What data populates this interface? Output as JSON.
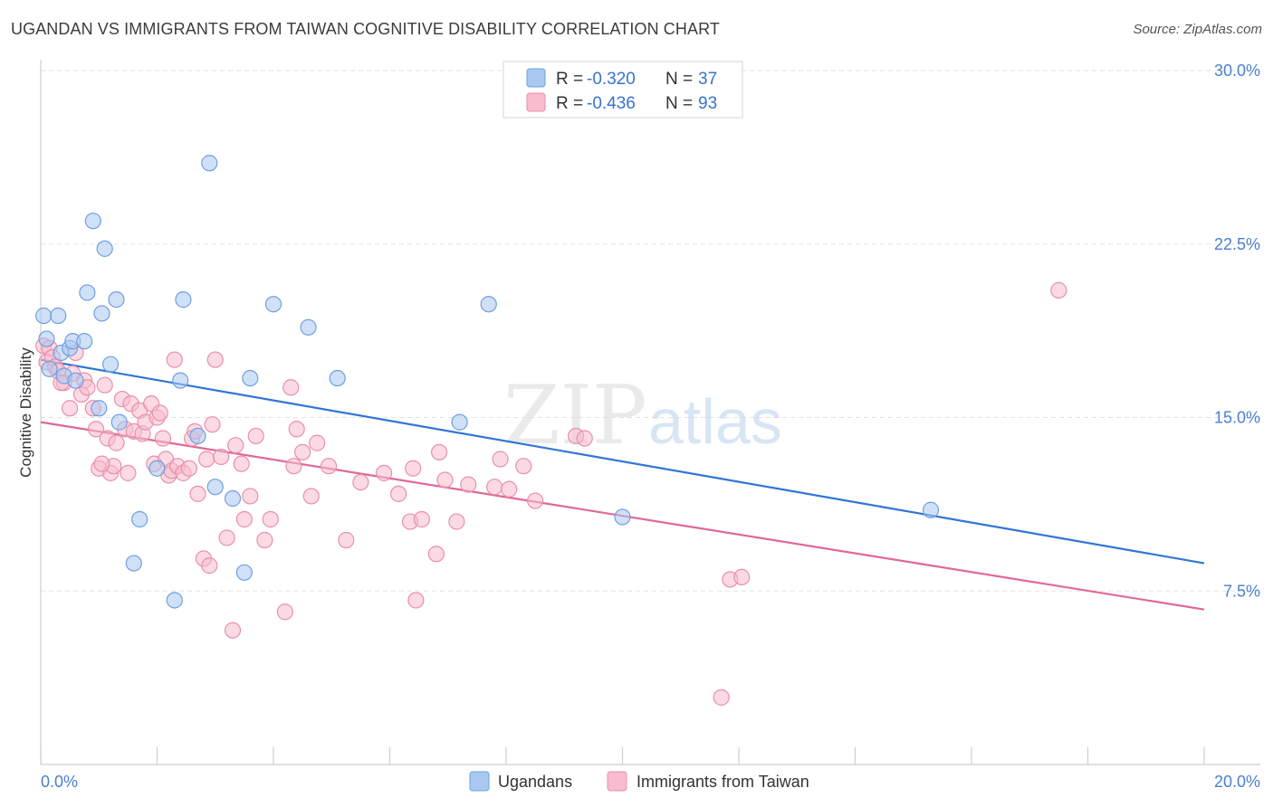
{
  "title": "UGANDAN VS IMMIGRANTS FROM TAIWAN COGNITIVE DISABILITY CORRELATION CHART",
  "source": "Source: ZipAtlas.com",
  "watermark": {
    "zip": "ZIP",
    "atlas": "atlas"
  },
  "colors": {
    "blue_fill": "#a9c8f0",
    "blue_stroke": "#6f9fe0",
    "blue_line": "#2f76d6",
    "pink_fill": "#f7bccd",
    "pink_stroke": "#e98fab",
    "pink_line": "#e0679a",
    "grid": "#e2e2e2",
    "axis_text": "#4a7fd0"
  },
  "legend": {
    "rows": [
      {
        "r_label": "R =",
        "r_value": "-0.320",
        "n_label": "N =",
        "n_value": "37"
      },
      {
        "r_label": "R =",
        "r_value": "-0.436",
        "n_label": "N =",
        "n_value": "93"
      }
    ]
  },
  "chart_data": {
    "type": "scatter",
    "title": "UGANDAN VS IMMIGRANTS FROM TAIWAN COGNITIVE DISABILITY CORRELATION CHART",
    "xlabel": "",
    "ylabel": "Cognitive Disability",
    "xlim": [
      0,
      20
    ],
    "ylim": [
      0,
      30
    ],
    "x_tick_labels": [
      "0.0%",
      "20.0%"
    ],
    "y_ticks": [
      7.5,
      15.0,
      22.5,
      30.0
    ],
    "y_tick_labels": [
      "7.5%",
      "15.0%",
      "22.5%",
      "30.0%"
    ],
    "grid": true,
    "legend_position": "top-center",
    "series": [
      {
        "name": "Ugandans",
        "r": -0.32,
        "n": 37,
        "trend": {
          "x0": 0,
          "y0": 17.5,
          "x1": 20,
          "y1": 8.7
        },
        "points": [
          [
            0.05,
            19.4
          ],
          [
            0.1,
            18.4
          ],
          [
            0.15,
            17.1
          ],
          [
            0.3,
            19.4
          ],
          [
            0.35,
            17.8
          ],
          [
            0.4,
            16.8
          ],
          [
            0.5,
            18.0
          ],
          [
            0.55,
            18.3
          ],
          [
            0.6,
            16.6
          ],
          [
            0.75,
            18.3
          ],
          [
            0.8,
            20.4
          ],
          [
            0.9,
            23.5
          ],
          [
            1.0,
            15.4
          ],
          [
            1.05,
            19.5
          ],
          [
            1.1,
            22.3
          ],
          [
            1.2,
            17.3
          ],
          [
            1.3,
            20.1
          ],
          [
            1.35,
            14.8
          ],
          [
            1.6,
            8.7
          ],
          [
            1.7,
            10.6
          ],
          [
            2.0,
            12.8
          ],
          [
            2.3,
            7.1
          ],
          [
            2.4,
            16.6
          ],
          [
            2.45,
            20.1
          ],
          [
            2.7,
            14.2
          ],
          [
            2.9,
            26.0
          ],
          [
            3.0,
            12.0
          ],
          [
            3.3,
            11.5
          ],
          [
            3.5,
            8.3
          ],
          [
            3.6,
            16.7
          ],
          [
            4.0,
            19.9
          ],
          [
            4.6,
            18.9
          ],
          [
            5.1,
            16.7
          ],
          [
            7.2,
            14.8
          ],
          [
            7.7,
            19.9
          ],
          [
            10.0,
            10.7
          ],
          [
            15.3,
            11.0
          ]
        ]
      },
      {
        "name": "Immigrants from Taiwan",
        "r": -0.436,
        "n": 93,
        "trend": {
          "x0": 0,
          "y0": 14.8,
          "x1": 20,
          "y1": 6.7
        },
        "points": [
          [
            0.05,
            18.1
          ],
          [
            0.1,
            17.4
          ],
          [
            0.15,
            18.0
          ],
          [
            0.2,
            17.6
          ],
          [
            0.25,
            17.2
          ],
          [
            0.3,
            17.0
          ],
          [
            0.4,
            16.5
          ],
          [
            0.5,
            15.4
          ],
          [
            0.55,
            16.9
          ],
          [
            0.6,
            17.8
          ],
          [
            0.7,
            16.0
          ],
          [
            0.75,
            16.6
          ],
          [
            0.8,
            16.3
          ],
          [
            0.9,
            15.4
          ],
          [
            0.95,
            14.5
          ],
          [
            1.0,
            12.8
          ],
          [
            1.1,
            16.4
          ],
          [
            1.15,
            14.1
          ],
          [
            1.2,
            12.6
          ],
          [
            1.25,
            12.9
          ],
          [
            1.3,
            13.9
          ],
          [
            1.4,
            15.8
          ],
          [
            1.45,
            14.5
          ],
          [
            1.5,
            12.6
          ],
          [
            1.55,
            15.6
          ],
          [
            1.6,
            14.4
          ],
          [
            1.7,
            15.3
          ],
          [
            1.75,
            14.3
          ],
          [
            1.8,
            14.8
          ],
          [
            1.9,
            15.6
          ],
          [
            1.95,
            13.0
          ],
          [
            2.0,
            15.0
          ],
          [
            2.05,
            15.2
          ],
          [
            2.1,
            14.1
          ],
          [
            2.15,
            13.2
          ],
          [
            2.2,
            12.5
          ],
          [
            2.25,
            12.7
          ],
          [
            2.3,
            17.5
          ],
          [
            2.35,
            12.9
          ],
          [
            2.45,
            12.6
          ],
          [
            2.55,
            12.8
          ],
          [
            2.6,
            14.1
          ],
          [
            2.65,
            14.4
          ],
          [
            2.7,
            11.7
          ],
          [
            2.8,
            8.9
          ],
          [
            2.85,
            13.2
          ],
          [
            2.9,
            8.6
          ],
          [
            2.95,
            14.7
          ],
          [
            3.0,
            17.5
          ],
          [
            3.1,
            13.3
          ],
          [
            3.2,
            9.8
          ],
          [
            3.3,
            5.8
          ],
          [
            3.35,
            13.8
          ],
          [
            3.45,
            13.0
          ],
          [
            3.5,
            10.6
          ],
          [
            3.6,
            11.6
          ],
          [
            3.7,
            14.2
          ],
          [
            3.85,
            9.7
          ],
          [
            3.95,
            10.6
          ],
          [
            4.2,
            6.6
          ],
          [
            4.3,
            16.3
          ],
          [
            4.35,
            12.9
          ],
          [
            4.4,
            14.5
          ],
          [
            4.5,
            13.5
          ],
          [
            4.65,
            11.6
          ],
          [
            4.75,
            13.9
          ],
          [
            4.95,
            12.9
          ],
          [
            5.25,
            9.7
          ],
          [
            5.5,
            12.2
          ],
          [
            5.9,
            12.6
          ],
          [
            6.15,
            11.7
          ],
          [
            6.35,
            10.5
          ],
          [
            6.4,
            12.8
          ],
          [
            6.45,
            7.1
          ],
          [
            6.55,
            10.6
          ],
          [
            6.8,
            9.1
          ],
          [
            6.85,
            13.5
          ],
          [
            6.95,
            12.3
          ],
          [
            7.15,
            10.5
          ],
          [
            7.35,
            12.1
          ],
          [
            7.8,
            12.0
          ],
          [
            7.9,
            13.2
          ],
          [
            8.05,
            11.9
          ],
          [
            8.3,
            12.9
          ],
          [
            8.5,
            11.4
          ],
          [
            9.2,
            14.2
          ],
          [
            9.35,
            14.1
          ],
          [
            11.7,
            2.9
          ],
          [
            11.85,
            8.0
          ],
          [
            12.05,
            8.1
          ],
          [
            17.5,
            20.5
          ],
          [
            0.35,
            16.5
          ],
          [
            1.05,
            13.0
          ]
        ]
      }
    ]
  }
}
